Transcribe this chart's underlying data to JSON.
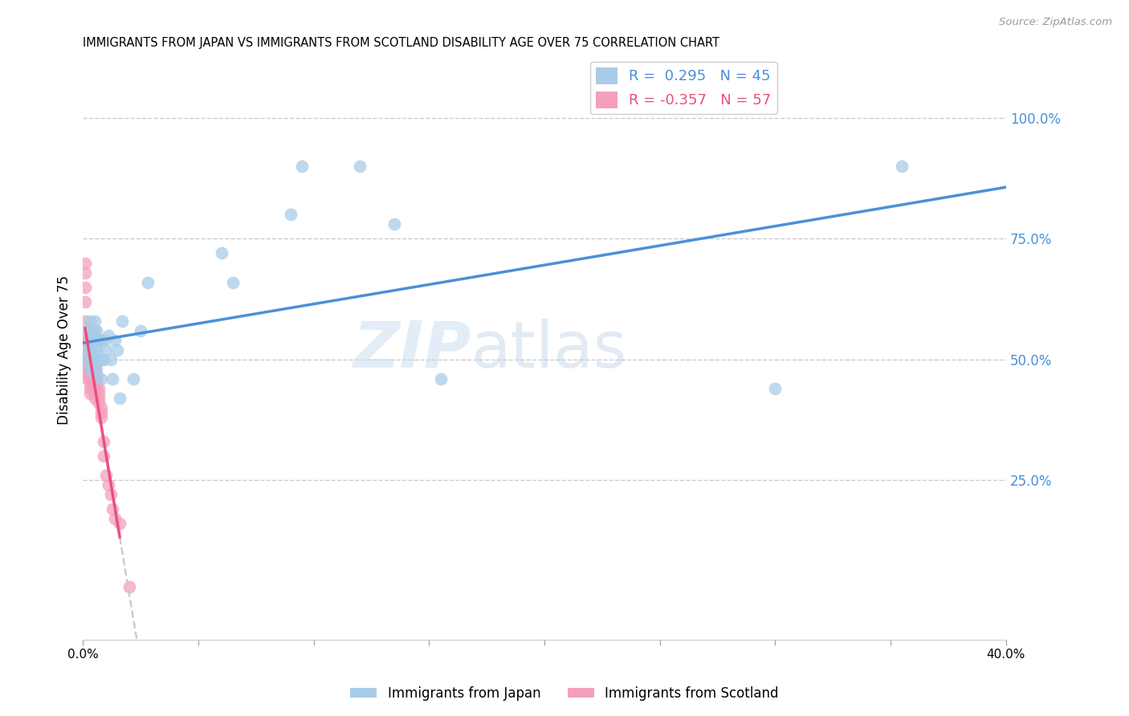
{
  "title": "IMMIGRANTS FROM JAPAN VS IMMIGRANTS FROM SCOTLAND DISABILITY AGE OVER 75 CORRELATION CHART",
  "source": "Source: ZipAtlas.com",
  "ylabel": "Disability Age Over 75",
  "xlim": [
    0.0,
    0.4
  ],
  "ylim": [
    -0.08,
    1.12
  ],
  "xticks": [
    0.0,
    0.05,
    0.1,
    0.15,
    0.2,
    0.25,
    0.3,
    0.35,
    0.4
  ],
  "japan_color": "#a8cce8",
  "japan_color_dark": "#4a90d9",
  "scotland_color": "#f4a0bc",
  "scotland_color_dark": "#e8517a",
  "trend_japan_color": "#4a90d9",
  "trend_scotland_solid_color": "#e8517a",
  "trend_scotland_dash_color": "#cccccc",
  "r_japan": 0.295,
  "n_japan": 45,
  "r_scotland": -0.357,
  "n_scotland": 57,
  "watermark_zip": "ZIP",
  "watermark_atlas": "atlas",
  "japan_x": [
    0.001,
    0.002,
    0.002,
    0.003,
    0.003,
    0.003,
    0.004,
    0.004,
    0.004,
    0.005,
    0.005,
    0.005,
    0.005,
    0.005,
    0.005,
    0.006,
    0.006,
    0.006,
    0.007,
    0.007,
    0.008,
    0.008,
    0.008,
    0.009,
    0.009,
    0.01,
    0.011,
    0.012,
    0.013,
    0.014,
    0.015,
    0.016,
    0.017,
    0.022,
    0.025,
    0.028,
    0.06,
    0.065,
    0.09,
    0.095,
    0.12,
    0.135,
    0.155,
    0.3,
    0.355
  ],
  "japan_y": [
    0.5,
    0.52,
    0.56,
    0.48,
    0.52,
    0.58,
    0.5,
    0.54,
    0.56,
    0.47,
    0.5,
    0.52,
    0.54,
    0.56,
    0.58,
    0.48,
    0.52,
    0.56,
    0.5,
    0.54,
    0.46,
    0.5,
    0.54,
    0.5,
    0.54,
    0.52,
    0.55,
    0.5,
    0.46,
    0.54,
    0.52,
    0.42,
    0.58,
    0.46,
    0.56,
    0.66,
    0.72,
    0.66,
    0.8,
    0.9,
    0.9,
    0.78,
    0.46,
    0.44,
    0.9
  ],
  "scotland_x": [
    0.001,
    0.001,
    0.001,
    0.001,
    0.001,
    0.001,
    0.002,
    0.002,
    0.002,
    0.002,
    0.002,
    0.002,
    0.002,
    0.002,
    0.002,
    0.003,
    0.003,
    0.003,
    0.003,
    0.003,
    0.003,
    0.003,
    0.003,
    0.003,
    0.004,
    0.004,
    0.004,
    0.004,
    0.004,
    0.005,
    0.005,
    0.005,
    0.005,
    0.005,
    0.005,
    0.005,
    0.005,
    0.006,
    0.006,
    0.006,
    0.006,
    0.007,
    0.007,
    0.007,
    0.007,
    0.008,
    0.008,
    0.008,
    0.009,
    0.009,
    0.01,
    0.011,
    0.012,
    0.013,
    0.014,
    0.016,
    0.02
  ],
  "scotland_y": [
    0.7,
    0.68,
    0.65,
    0.62,
    0.58,
    0.55,
    0.54,
    0.53,
    0.52,
    0.51,
    0.5,
    0.49,
    0.48,
    0.47,
    0.46,
    0.51,
    0.5,
    0.49,
    0.48,
    0.47,
    0.46,
    0.45,
    0.44,
    0.43,
    0.5,
    0.49,
    0.48,
    0.47,
    0.46,
    0.49,
    0.48,
    0.47,
    0.46,
    0.45,
    0.44,
    0.43,
    0.42,
    0.47,
    0.46,
    0.45,
    0.44,
    0.44,
    0.43,
    0.42,
    0.41,
    0.4,
    0.39,
    0.38,
    0.33,
    0.3,
    0.26,
    0.24,
    0.22,
    0.19,
    0.17,
    0.16,
    0.03
  ]
}
